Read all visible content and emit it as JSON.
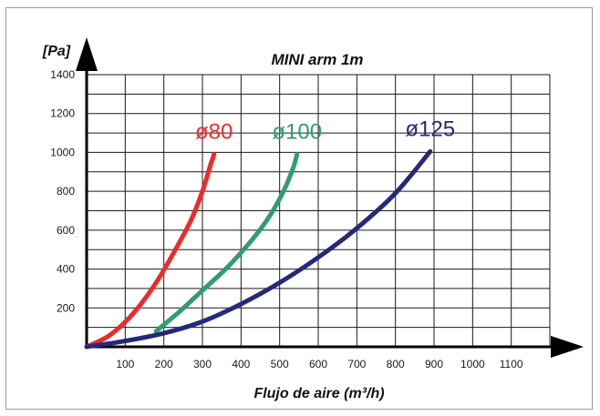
{
  "chart_data": {
    "type": "line",
    "title": "MINI arm 1m",
    "ylabel": "[Pa]",
    "xlabel": "Flujo de aire (m³/h)",
    "xlim": [
      0,
      1200
    ],
    "ylim": [
      0,
      1400
    ],
    "x_ticks": [
      100,
      200,
      300,
      400,
      500,
      600,
      700,
      800,
      900,
      1000,
      1100
    ],
    "y_ticks": [
      200,
      400,
      600,
      800,
      1000,
      1200,
      1400
    ],
    "grid": true,
    "series": [
      {
        "name": "ø80",
        "color": "#ee2a2a",
        "points": [
          [
            0,
            0
          ],
          [
            60,
            60
          ],
          [
            120,
            170
          ],
          [
            180,
            330
          ],
          [
            230,
            500
          ],
          [
            270,
            650
          ],
          [
            300,
            800
          ],
          [
            320,
            930
          ],
          [
            330,
            990
          ]
        ]
      },
      {
        "name": "ø100",
        "color": "#2f9e6c",
        "points": [
          [
            180,
            80
          ],
          [
            240,
            180
          ],
          [
            300,
            290
          ],
          [
            360,
            400
          ],
          [
            420,
            530
          ],
          [
            470,
            660
          ],
          [
            510,
            800
          ],
          [
            535,
            920
          ],
          [
            545,
            990
          ]
        ]
      },
      {
        "name": "ø125",
        "color": "#26297a",
        "points": [
          [
            0,
            0
          ],
          [
            100,
            30
          ],
          [
            200,
            70
          ],
          [
            300,
            130
          ],
          [
            400,
            220
          ],
          [
            500,
            330
          ],
          [
            600,
            460
          ],
          [
            700,
            610
          ],
          [
            800,
            790
          ],
          [
            890,
            1005
          ]
        ]
      }
    ]
  }
}
